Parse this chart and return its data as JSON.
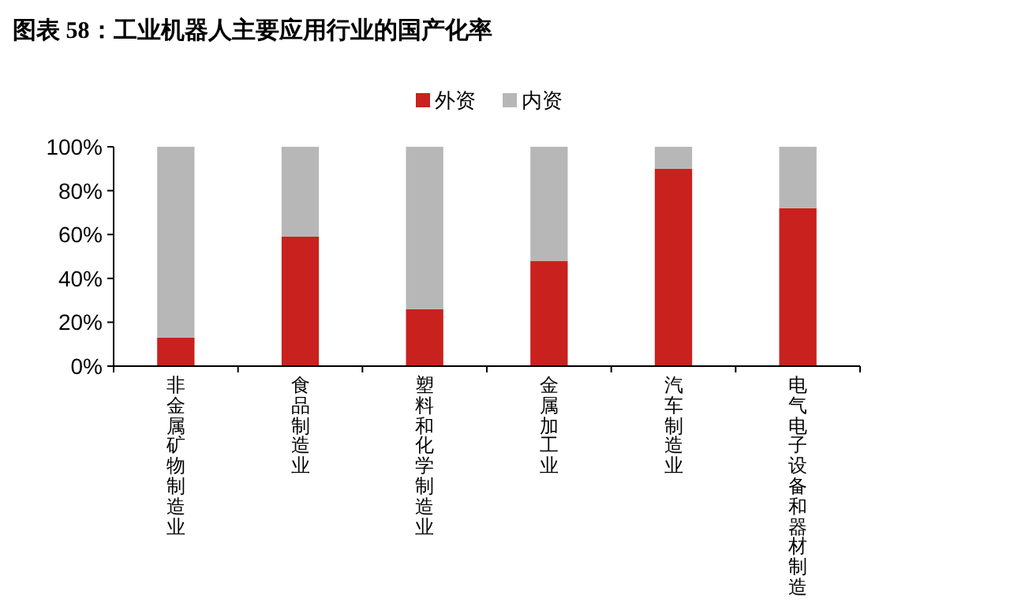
{
  "chart_data": {
    "type": "bar",
    "title": "图表 58：工业机器人主要应用行业的国产化率",
    "categories": [
      "非金属矿物制造业",
      "食品制造业",
      "塑料和化学制造业",
      "金属加工业",
      "汽车制造业",
      "电气电子设备和器材制造"
    ],
    "series": [
      {
        "name": "外资",
        "color": "#c9211e",
        "values": [
          13,
          59,
          26,
          48,
          90,
          72
        ]
      },
      {
        "name": "内资",
        "color": "#b7b7b7",
        "values": [
          87,
          41,
          74,
          52,
          10,
          28
        ]
      }
    ],
    "stacked": true,
    "ylim": [
      0,
      100
    ],
    "yticks": [
      {
        "value": 0,
        "label": "0%"
      },
      {
        "value": 20,
        "label": "20%"
      },
      {
        "value": 40,
        "label": "40%"
      },
      {
        "value": 60,
        "label": "60%"
      },
      {
        "value": 80,
        "label": "80%"
      },
      {
        "value": 100,
        "label": "100%"
      }
    ],
    "legend": "top",
    "grid": false
  }
}
